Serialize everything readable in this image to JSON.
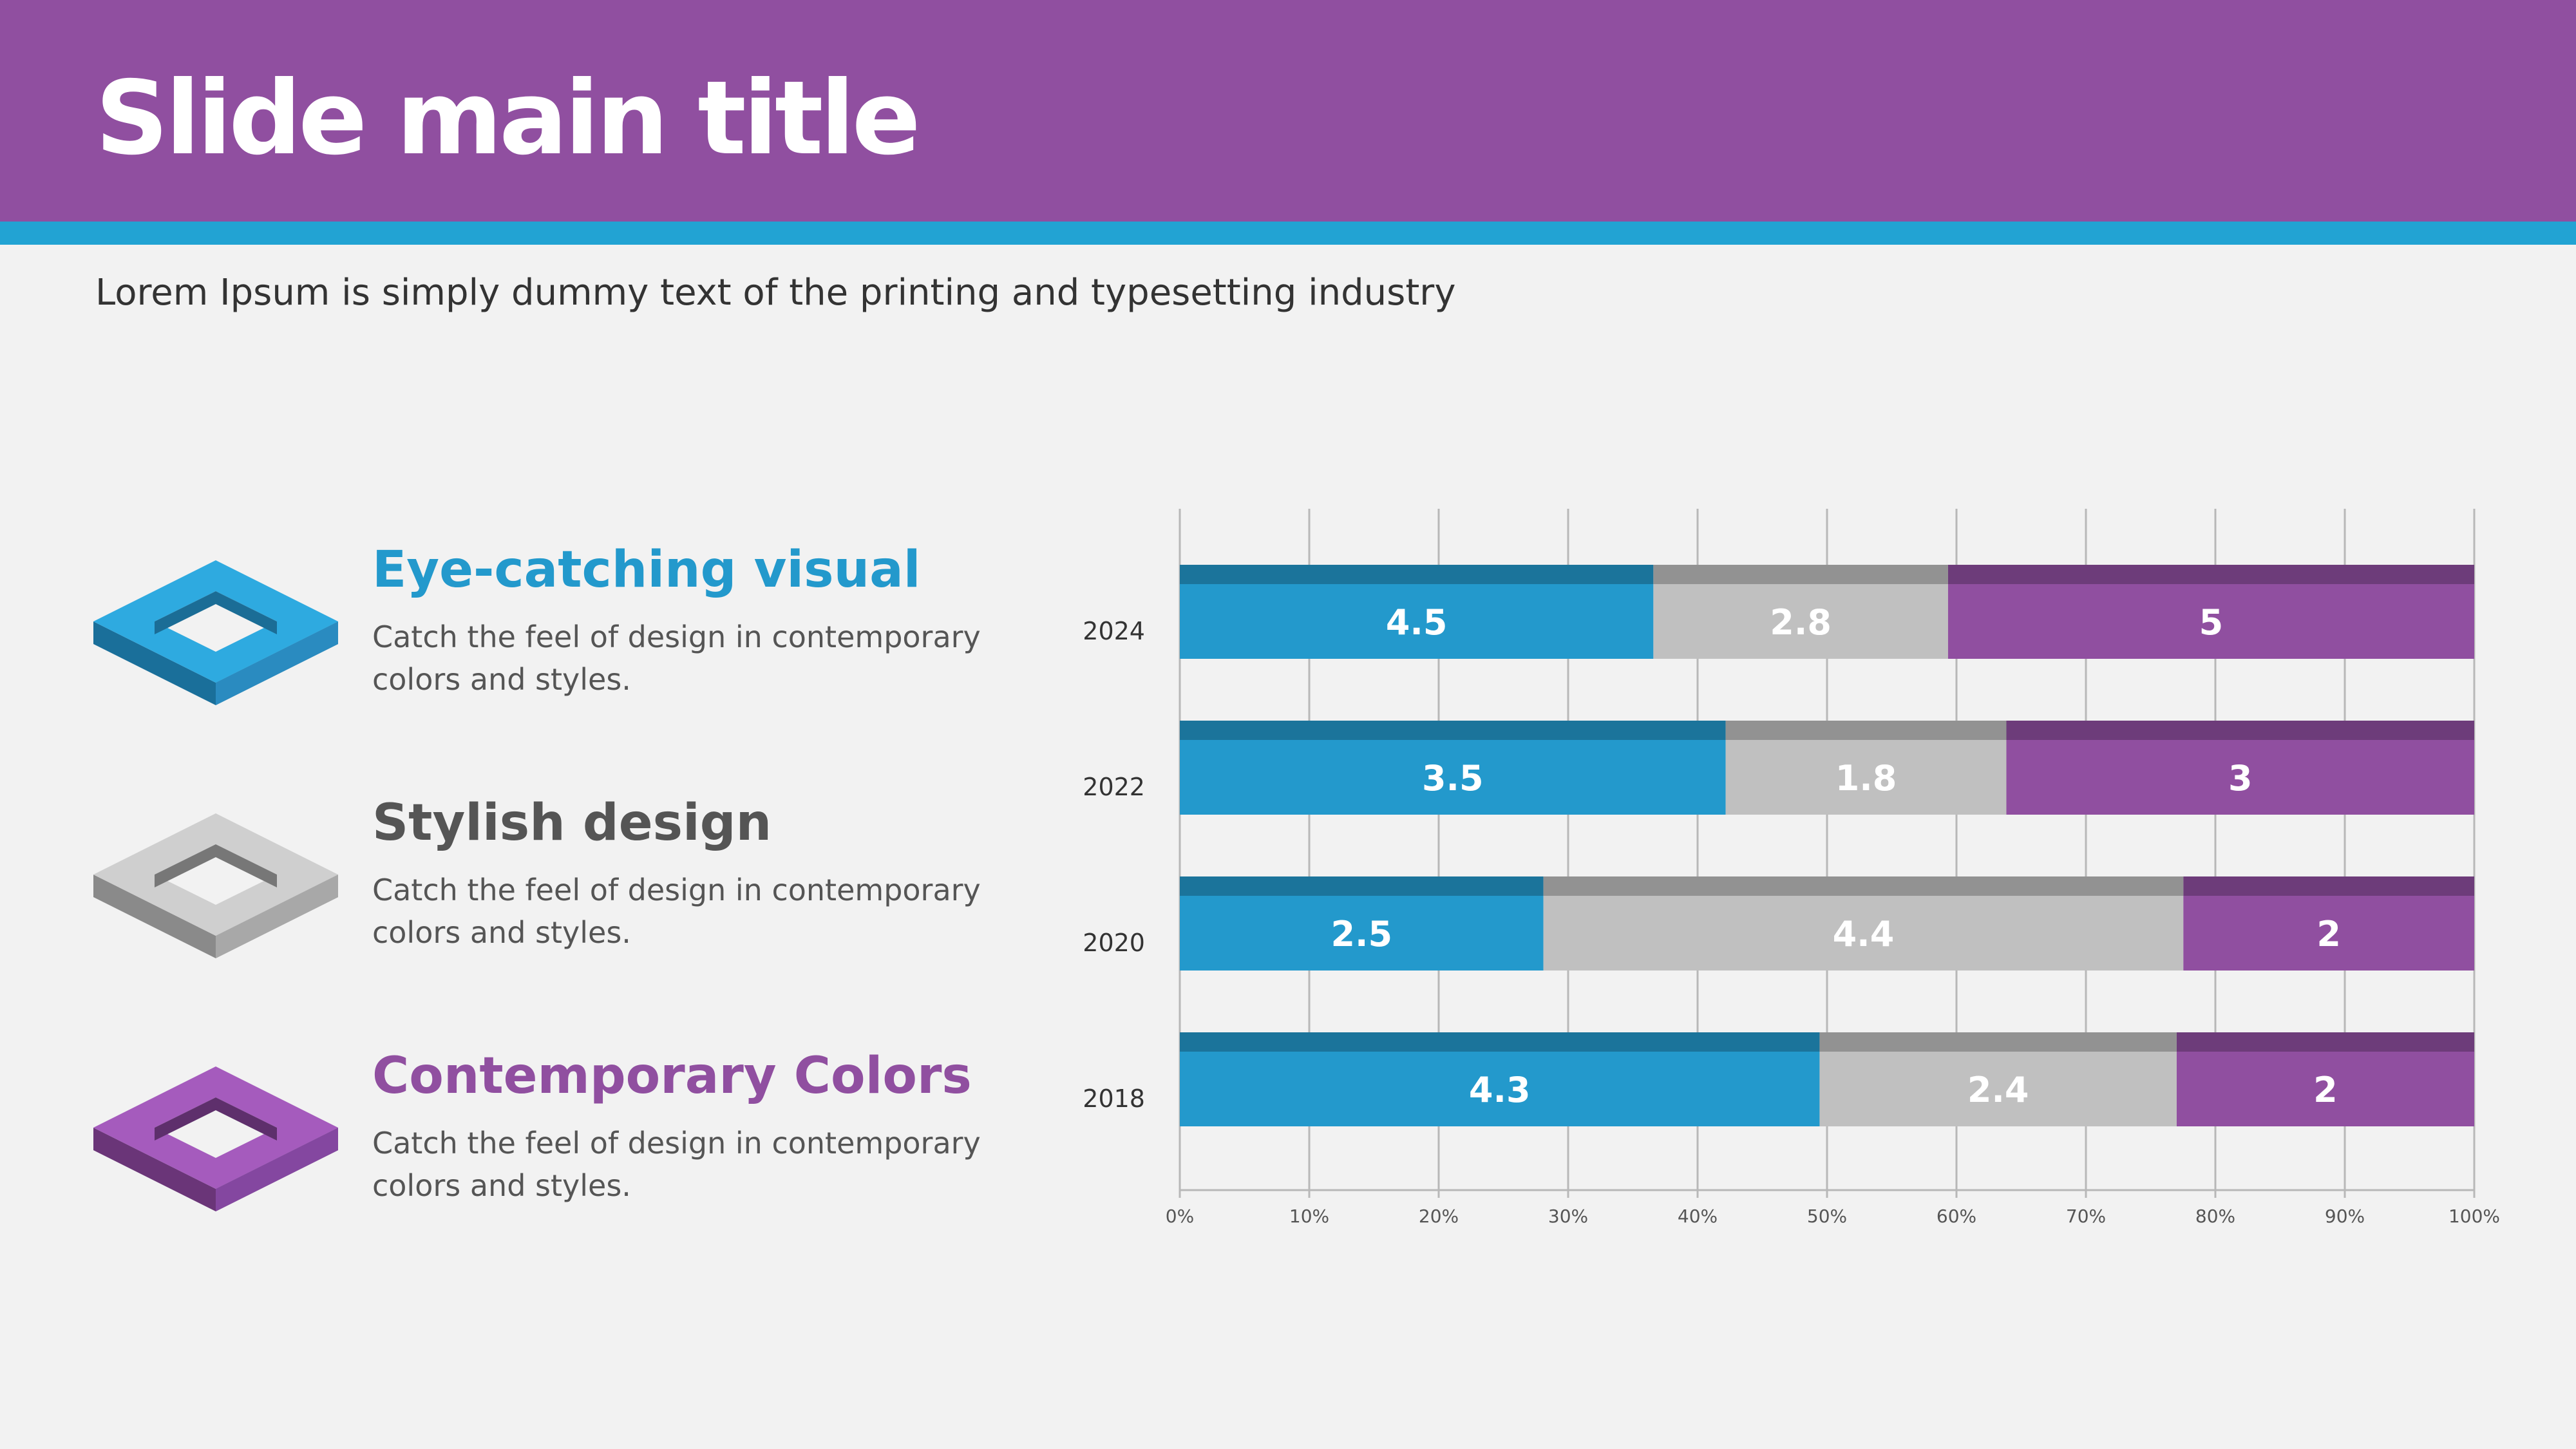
{
  "slide": {
    "title": "Slide main title",
    "subtitle": "Lorem Ipsum is simply dummy text of the printing and typesetting industry"
  },
  "colors": {
    "header": "#904fa0",
    "stripe": "#22a3d3",
    "blue": "#2399cc",
    "gray": "#c0c0c0",
    "purple": "#904fa0"
  },
  "features": [
    {
      "title": "Eye-catching visual",
      "description": "Catch the feel of design in contemporary colors and styles.",
      "color": "#2399cc",
      "icon": "blue-square-ring-icon"
    },
    {
      "title": "Stylish design",
      "description": "Catch the feel of design in contemporary colors and styles.",
      "color": "#555555",
      "icon": "gray-square-ring-icon"
    },
    {
      "title": "Contemporary Colors",
      "description": "Catch the feel of design in contemporary colors and styles.",
      "color": "#904fa0",
      "icon": "purple-square-ring-icon"
    }
  ],
  "chart_data": {
    "type": "bar",
    "orientation": "horizontal",
    "stacking": "percent",
    "categories": [
      "2024",
      "2022",
      "2020",
      "2018"
    ],
    "series": [
      {
        "values": [
          4.5,
          3.5,
          2.5,
          4.3
        ],
        "color": "#2399cc"
      },
      {
        "values": [
          2.8,
          1.8,
          4.4,
          2.4
        ],
        "color": "#c0c0c0"
      },
      {
        "values": [
          5,
          3,
          2,
          2
        ],
        "color": "#904fa0"
      }
    ],
    "x_ticks": [
      "0%",
      "10%",
      "20%",
      "30%",
      "40%",
      "50%",
      "60%",
      "70%",
      "80%",
      "90%",
      "100%"
    ],
    "xlim": [
      0,
      100
    ],
    "grid": true,
    "legend": "none"
  }
}
